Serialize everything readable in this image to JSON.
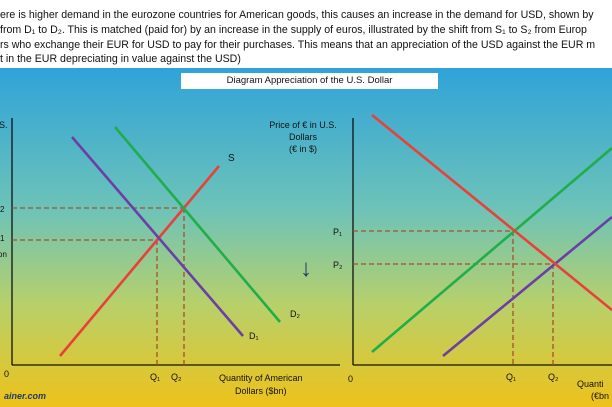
{
  "intro": {
    "line1": "ere is higher demand in the eurozone countries for American goods, this causes an increase in the demand for USD, shown by",
    "line2": "from D₁ to D₂. This is matched (paid for) by an increase in the supply of euros, illustrated by the shift from S₁ to S₂ from Europ",
    "line3": "rs who exchange their EUR for USD to pay for their purchases. This means that an appreciation of the USD against the EUR m",
    "line4": "t in the EUR depreciating in value against the USD)"
  },
  "diagram_title": "Diagram Appreciation of the U.S. Dollar",
  "left_graph": {
    "y_axis_label": "S.",
    "origin": "0",
    "p2": "2",
    "p1": "1",
    "p1_suffix": "on",
    "supply_label": "S",
    "d2_label": "D₂",
    "d1_label": "D₁",
    "q1": "Q₁",
    "q2": "Q₂",
    "x_axis_label_line1": "Quantity of American",
    "x_axis_label_line2": "Dollars ($bn)"
  },
  "arrow": "↓",
  "right_graph": {
    "y_axis_label_line1": "Price of € in U.S.",
    "y_axis_label_line2": "Dollars",
    "y_axis_label_line3": "(€ in $)",
    "origin": "0",
    "p1": "P₁",
    "p2": "P₂",
    "q1": "Q₁",
    "q2": "Q₂",
    "x_axis_label_line1": "Quanti",
    "x_axis_label_line2": "(€bn"
  },
  "watermark": "ainer.com",
  "colors": {
    "supply": "#e8413a",
    "demand_shifted": "#1fae4a",
    "demand": "#6b3fa6",
    "dashed": "#a0522d",
    "arrow": "#1f3b63"
  }
}
